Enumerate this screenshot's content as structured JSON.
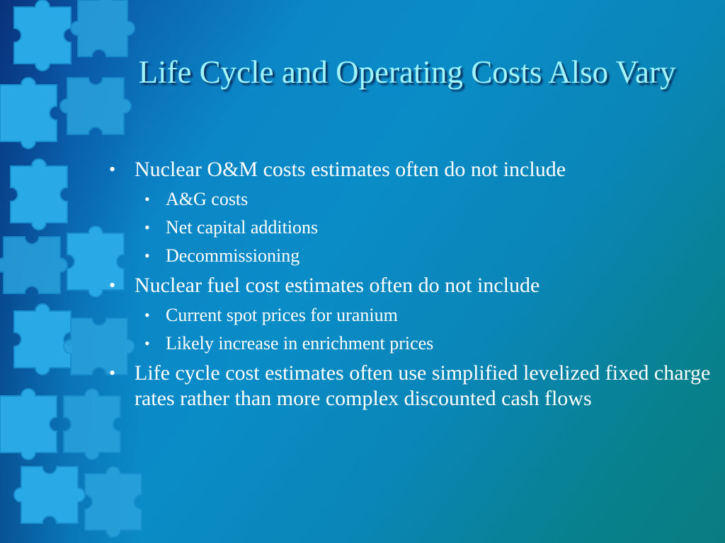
{
  "slide": {
    "title": "Life Cycle and Operating Costs Also Vary",
    "bullets": [
      {
        "text": "Nuclear O&M costs estimates often do not include",
        "sub": [
          "A&G costs",
          "Net capital additions",
          "Decommissioning"
        ]
      },
      {
        "text": "Nuclear fuel cost estimates often do not include",
        "sub": [
          "Current spot prices for uranium",
          "Likely increase in enrichment prices"
        ]
      },
      {
        "text": "Life cycle cost estimates often use simplified levelized fixed charge rates rather than more complex discounted cash flows",
        "sub": []
      }
    ],
    "bullet_glyph": "•",
    "colors": {
      "title": "#9ff3f9",
      "body_text": "#ffffff",
      "background_top_left": "#0d3f8c",
      "background_bottom_right": "#087d80",
      "puzzle_pieces": "#29a9e6"
    },
    "decoration": "puzzle-pieces"
  }
}
